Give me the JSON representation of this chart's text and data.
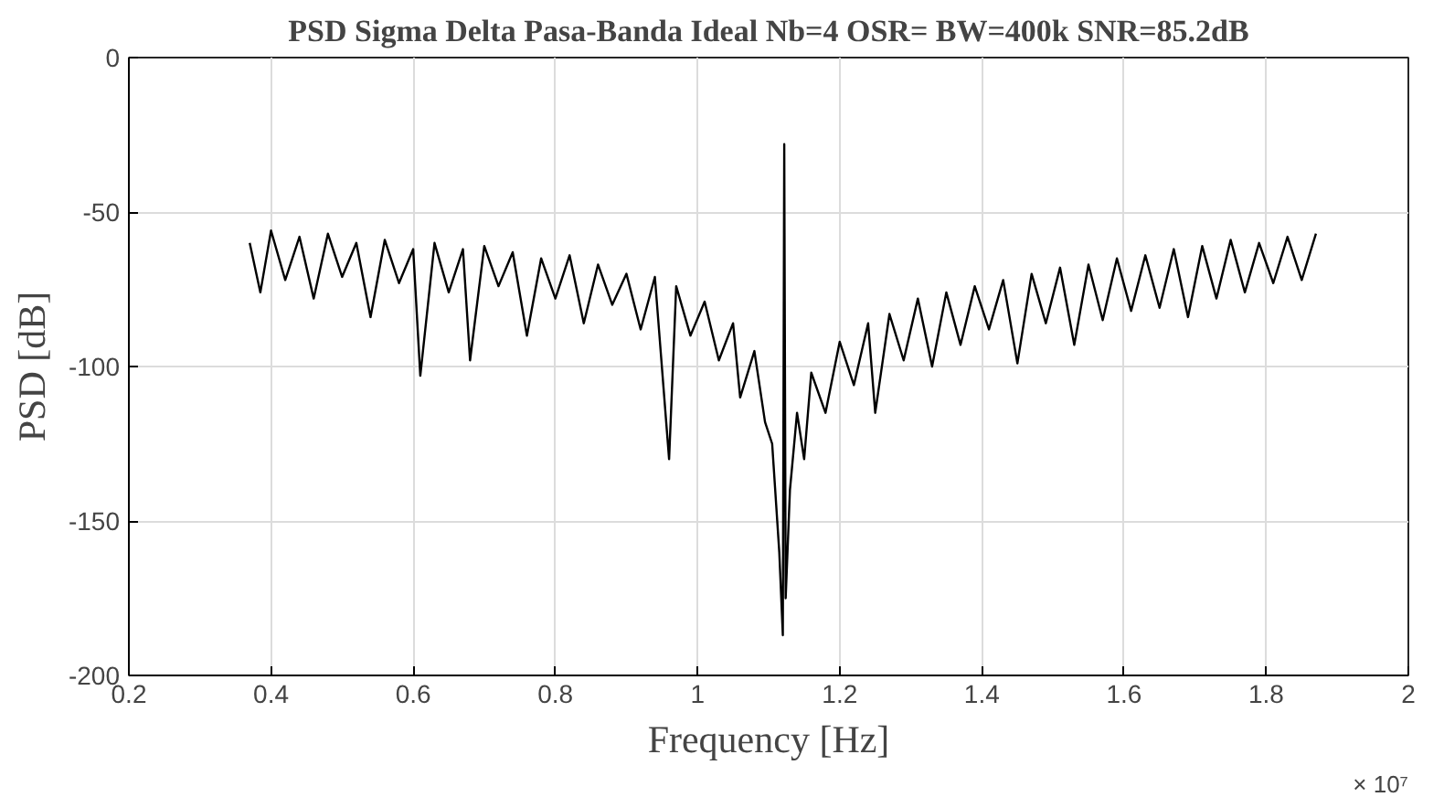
{
  "chart_data": {
    "type": "line",
    "title": "PSD Sigma Delta Pasa-Banda Ideal Nb=4 OSR= BW=400k SNR=85.2dB",
    "xlabel": "Frequency [Hz]",
    "ylabel": "PSD [dB]",
    "annotations": [
      "× 10⁷"
    ],
    "x": [
      0.37,
      0.385,
      0.4,
      0.42,
      0.44,
      0.46,
      0.48,
      0.5,
      0.52,
      0.54,
      0.56,
      0.58,
      0.6,
      0.61,
      0.63,
      0.65,
      0.67,
      0.68,
      0.7,
      0.72,
      0.74,
      0.76,
      0.78,
      0.8,
      0.82,
      0.84,
      0.86,
      0.88,
      0.9,
      0.92,
      0.94,
      0.96,
      0.97,
      0.99,
      1.01,
      1.03,
      1.05,
      1.06,
      1.08,
      1.095,
      1.105,
      1.115,
      1.12,
      1.122,
      1.124,
      1.13,
      1.14,
      1.15,
      1.16,
      1.18,
      1.2,
      1.22,
      1.24,
      1.25,
      1.27,
      1.29,
      1.31,
      1.33,
      1.35,
      1.37,
      1.39,
      1.41,
      1.43,
      1.45,
      1.47,
      1.49,
      1.51,
      1.53,
      1.55,
      1.57,
      1.59,
      1.61,
      1.63,
      1.65,
      1.67,
      1.69,
      1.71,
      1.73,
      1.75,
      1.77,
      1.79,
      1.81,
      1.83,
      1.85,
      1.87
    ],
    "series": [
      {
        "color": "#000000",
        "values": [
          -60,
          -76,
          -56,
          -72,
          -58,
          -78,
          -57,
          -71,
          -60,
          -84,
          -59,
          -73,
          -62,
          -103,
          -60,
          -76,
          -62,
          -98,
          -61,
          -74,
          -63,
          -90,
          -65,
          -78,
          -64,
          -86,
          -67,
          -80,
          -70,
          -88,
          -71,
          -130,
          -74,
          -90,
          -79,
          -98,
          -86,
          -110,
          -95,
          -118,
          -125,
          -160,
          -187,
          -28,
          -175,
          -140,
          -115,
          -130,
          -102,
          -115,
          -92,
          -106,
          -86,
          -115,
          -83,
          -98,
          -78,
          -100,
          -76,
          -93,
          -74,
          -88,
          -72,
          -99,
          -70,
          -86,
          -68,
          -93,
          -67,
          -85,
          -65,
          -82,
          -64,
          -81,
          -62,
          -84,
          -61,
          -78,
          -59,
          -76,
          -60,
          -73,
          -58,
          -72,
          -57
        ]
      }
    ],
    "xlim": [
      0.2,
      2
    ],
    "xticks": [
      0.2,
      0.4,
      0.6,
      0.8,
      1,
      1.2,
      1.4,
      1.6,
      1.8,
      2
    ],
    "ylim": [
      -200,
      0
    ],
    "yticks": [
      -200,
      -150,
      -100,
      -50,
      0
    ],
    "grid": true,
    "line_style": "solid",
    "marker": "none"
  }
}
